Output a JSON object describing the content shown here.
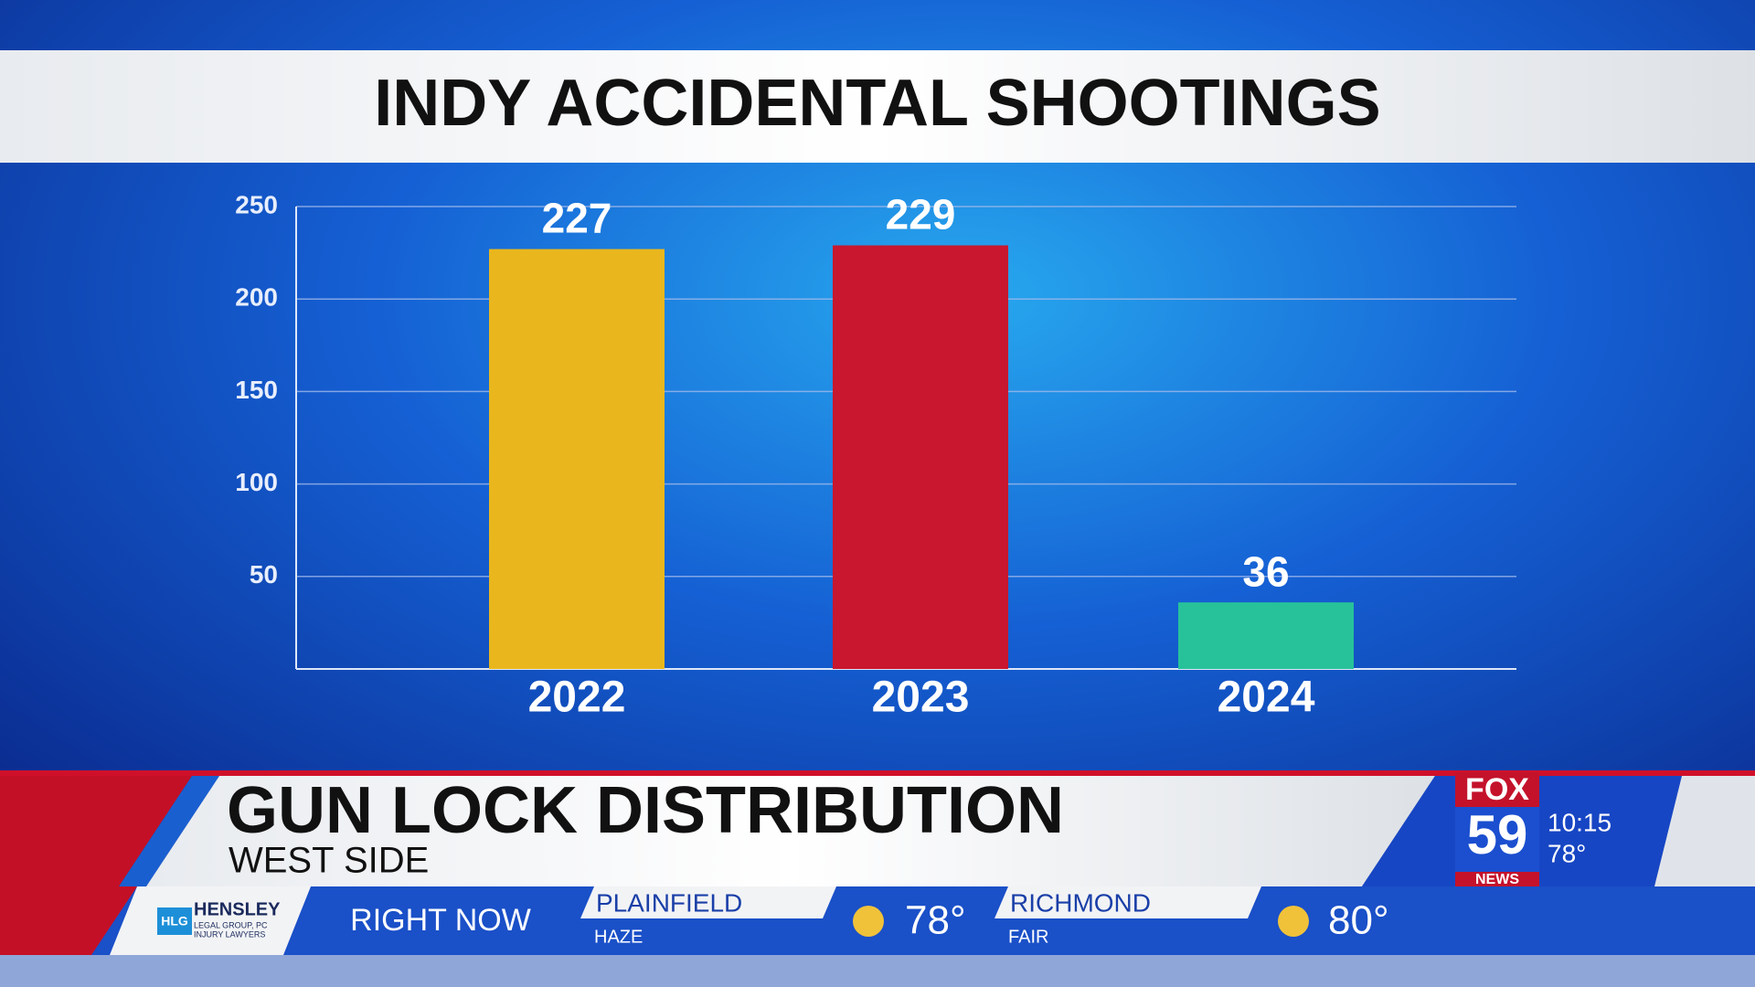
{
  "chart_data": {
    "type": "bar",
    "title": "INDY ACCIDENTAL SHOOTINGS",
    "categories": [
      "2022",
      "2023",
      "2024"
    ],
    "values": [
      227,
      229,
      36
    ],
    "colors": [
      "#e9b71d",
      "#c8172f",
      "#27c29a"
    ],
    "ylim": [
      0,
      250
    ],
    "yticks": [
      50,
      100,
      150,
      200,
      250
    ],
    "grid": true
  },
  "lower_third": {
    "headline": "GUN LOCK DISTRIBUTION",
    "subhead": "WEST SIDE"
  },
  "station": {
    "brand": "FOX",
    "channel": "59",
    "news": "NEWS",
    "time": "10:15",
    "temperature": "78°"
  },
  "ticker": {
    "sponsor": {
      "initials": "HLG",
      "name": "HENSLEY",
      "line1": "LEGAL GROUP, PC",
      "line2": "INJURY LAWYERS"
    },
    "label": "RIGHT NOW",
    "cities": [
      {
        "name": "PLAINFIELD",
        "condition": "HAZE",
        "temperature": "78°"
      },
      {
        "name": "RICHMOND",
        "condition": "FAIR",
        "temperature": "80°"
      }
    ]
  }
}
